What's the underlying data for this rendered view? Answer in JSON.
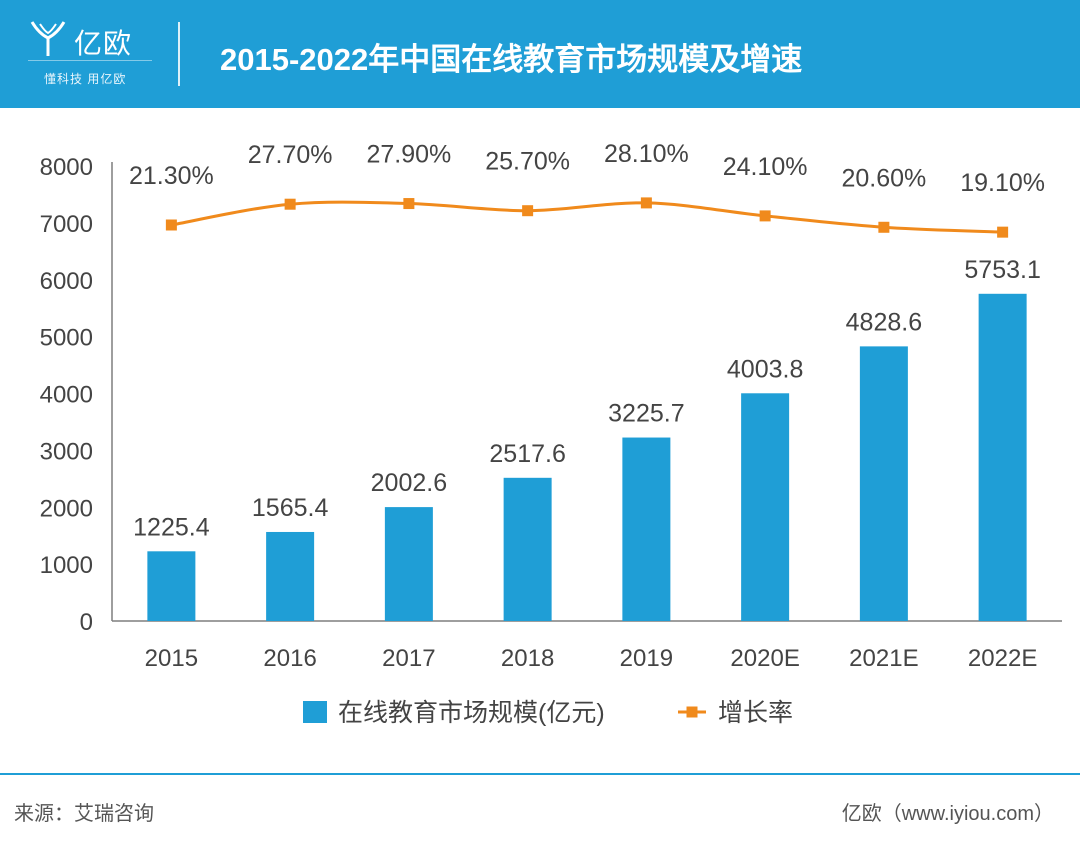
{
  "header": {
    "brand": "亿欧",
    "slogan": "懂科技 用亿欧",
    "title": "2015-2022年中国在线教育市场规模及增速"
  },
  "colors": {
    "header_bg": "#1f9ed6",
    "bar": "#1f9ed6",
    "line": "#f08a1c",
    "axis": "#7f7f7f",
    "text": "#444444"
  },
  "chart_data": {
    "type": "bar",
    "categories": [
      "2015",
      "2016",
      "2017",
      "2018",
      "2019",
      "2020E",
      "2021E",
      "2022E"
    ],
    "ylim": [
      0,
      8000
    ],
    "yticks": [
      0,
      1000,
      2000,
      3000,
      4000,
      5000,
      6000,
      7000,
      8000
    ],
    "grid": false,
    "legend_position": "bottom",
    "series": [
      {
        "name": "在线教育市场规模(亿元)",
        "type": "bar",
        "values": [
          1225.4,
          1565.4,
          2002.6,
          2517.6,
          3225.7,
          4003.8,
          4828.6,
          5753.1
        ],
        "labels": [
          "1225.4",
          "1565.4",
          "2002.6",
          "2517.6",
          "3225.7",
          "4003.8",
          "4828.6",
          "5753.1"
        ]
      },
      {
        "name": "增长率",
        "type": "line",
        "values": [
          21.3,
          27.7,
          27.9,
          25.7,
          28.1,
          24.1,
          20.6,
          19.1
        ],
        "labels": [
          "21.30%",
          "27.70%",
          "27.90%",
          "25.70%",
          "28.10%",
          "24.10%",
          "20.60%",
          "19.10%"
        ]
      }
    ]
  },
  "footer": {
    "source": "来源：艾瑞咨询",
    "credit": "亿欧（www.iyiou.com）"
  }
}
